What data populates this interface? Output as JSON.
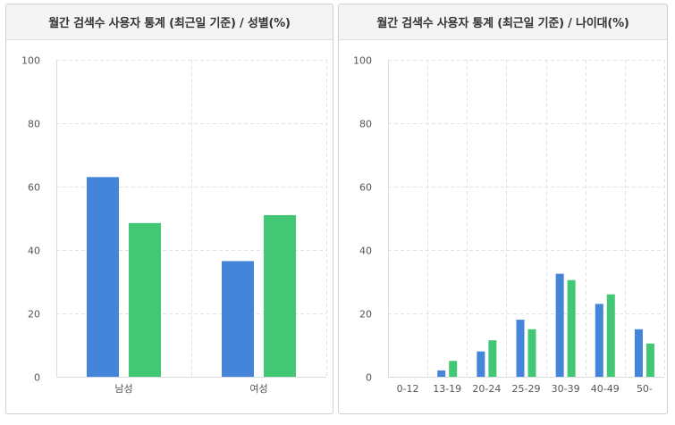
{
  "colors": {
    "series_a": "#4484d9",
    "series_b": "#42c774"
  },
  "chart_data": [
    {
      "type": "bar",
      "title": "월간 검색수 사용자 통계 (최근일 기준) / 성별(%)",
      "categories": [
        "남성",
        "여성"
      ],
      "series": [
        {
          "values": [
            63,
            36.5
          ]
        },
        {
          "values": [
            48.5,
            51
          ]
        }
      ],
      "ylim": [
        0,
        100
      ],
      "yticks": [
        0,
        20,
        40,
        60,
        80,
        100
      ],
      "grid": true
    },
    {
      "type": "bar",
      "title": "월간 검색수 사용자 통계 (최근일 기준) / 나이대(%)",
      "categories": [
        "0-12",
        "13-19",
        "20-24",
        "25-29",
        "30-39",
        "40-49",
        "50-"
      ],
      "series": [
        {
          "values": [
            0,
            2,
            8,
            18,
            32.5,
            23,
            15
          ]
        },
        {
          "values": [
            0,
            5,
            11.5,
            15,
            30.5,
            26,
            10.5
          ]
        }
      ],
      "ylim": [
        0,
        100
      ],
      "yticks": [
        0,
        20,
        40,
        60,
        80,
        100
      ],
      "grid": true
    }
  ]
}
